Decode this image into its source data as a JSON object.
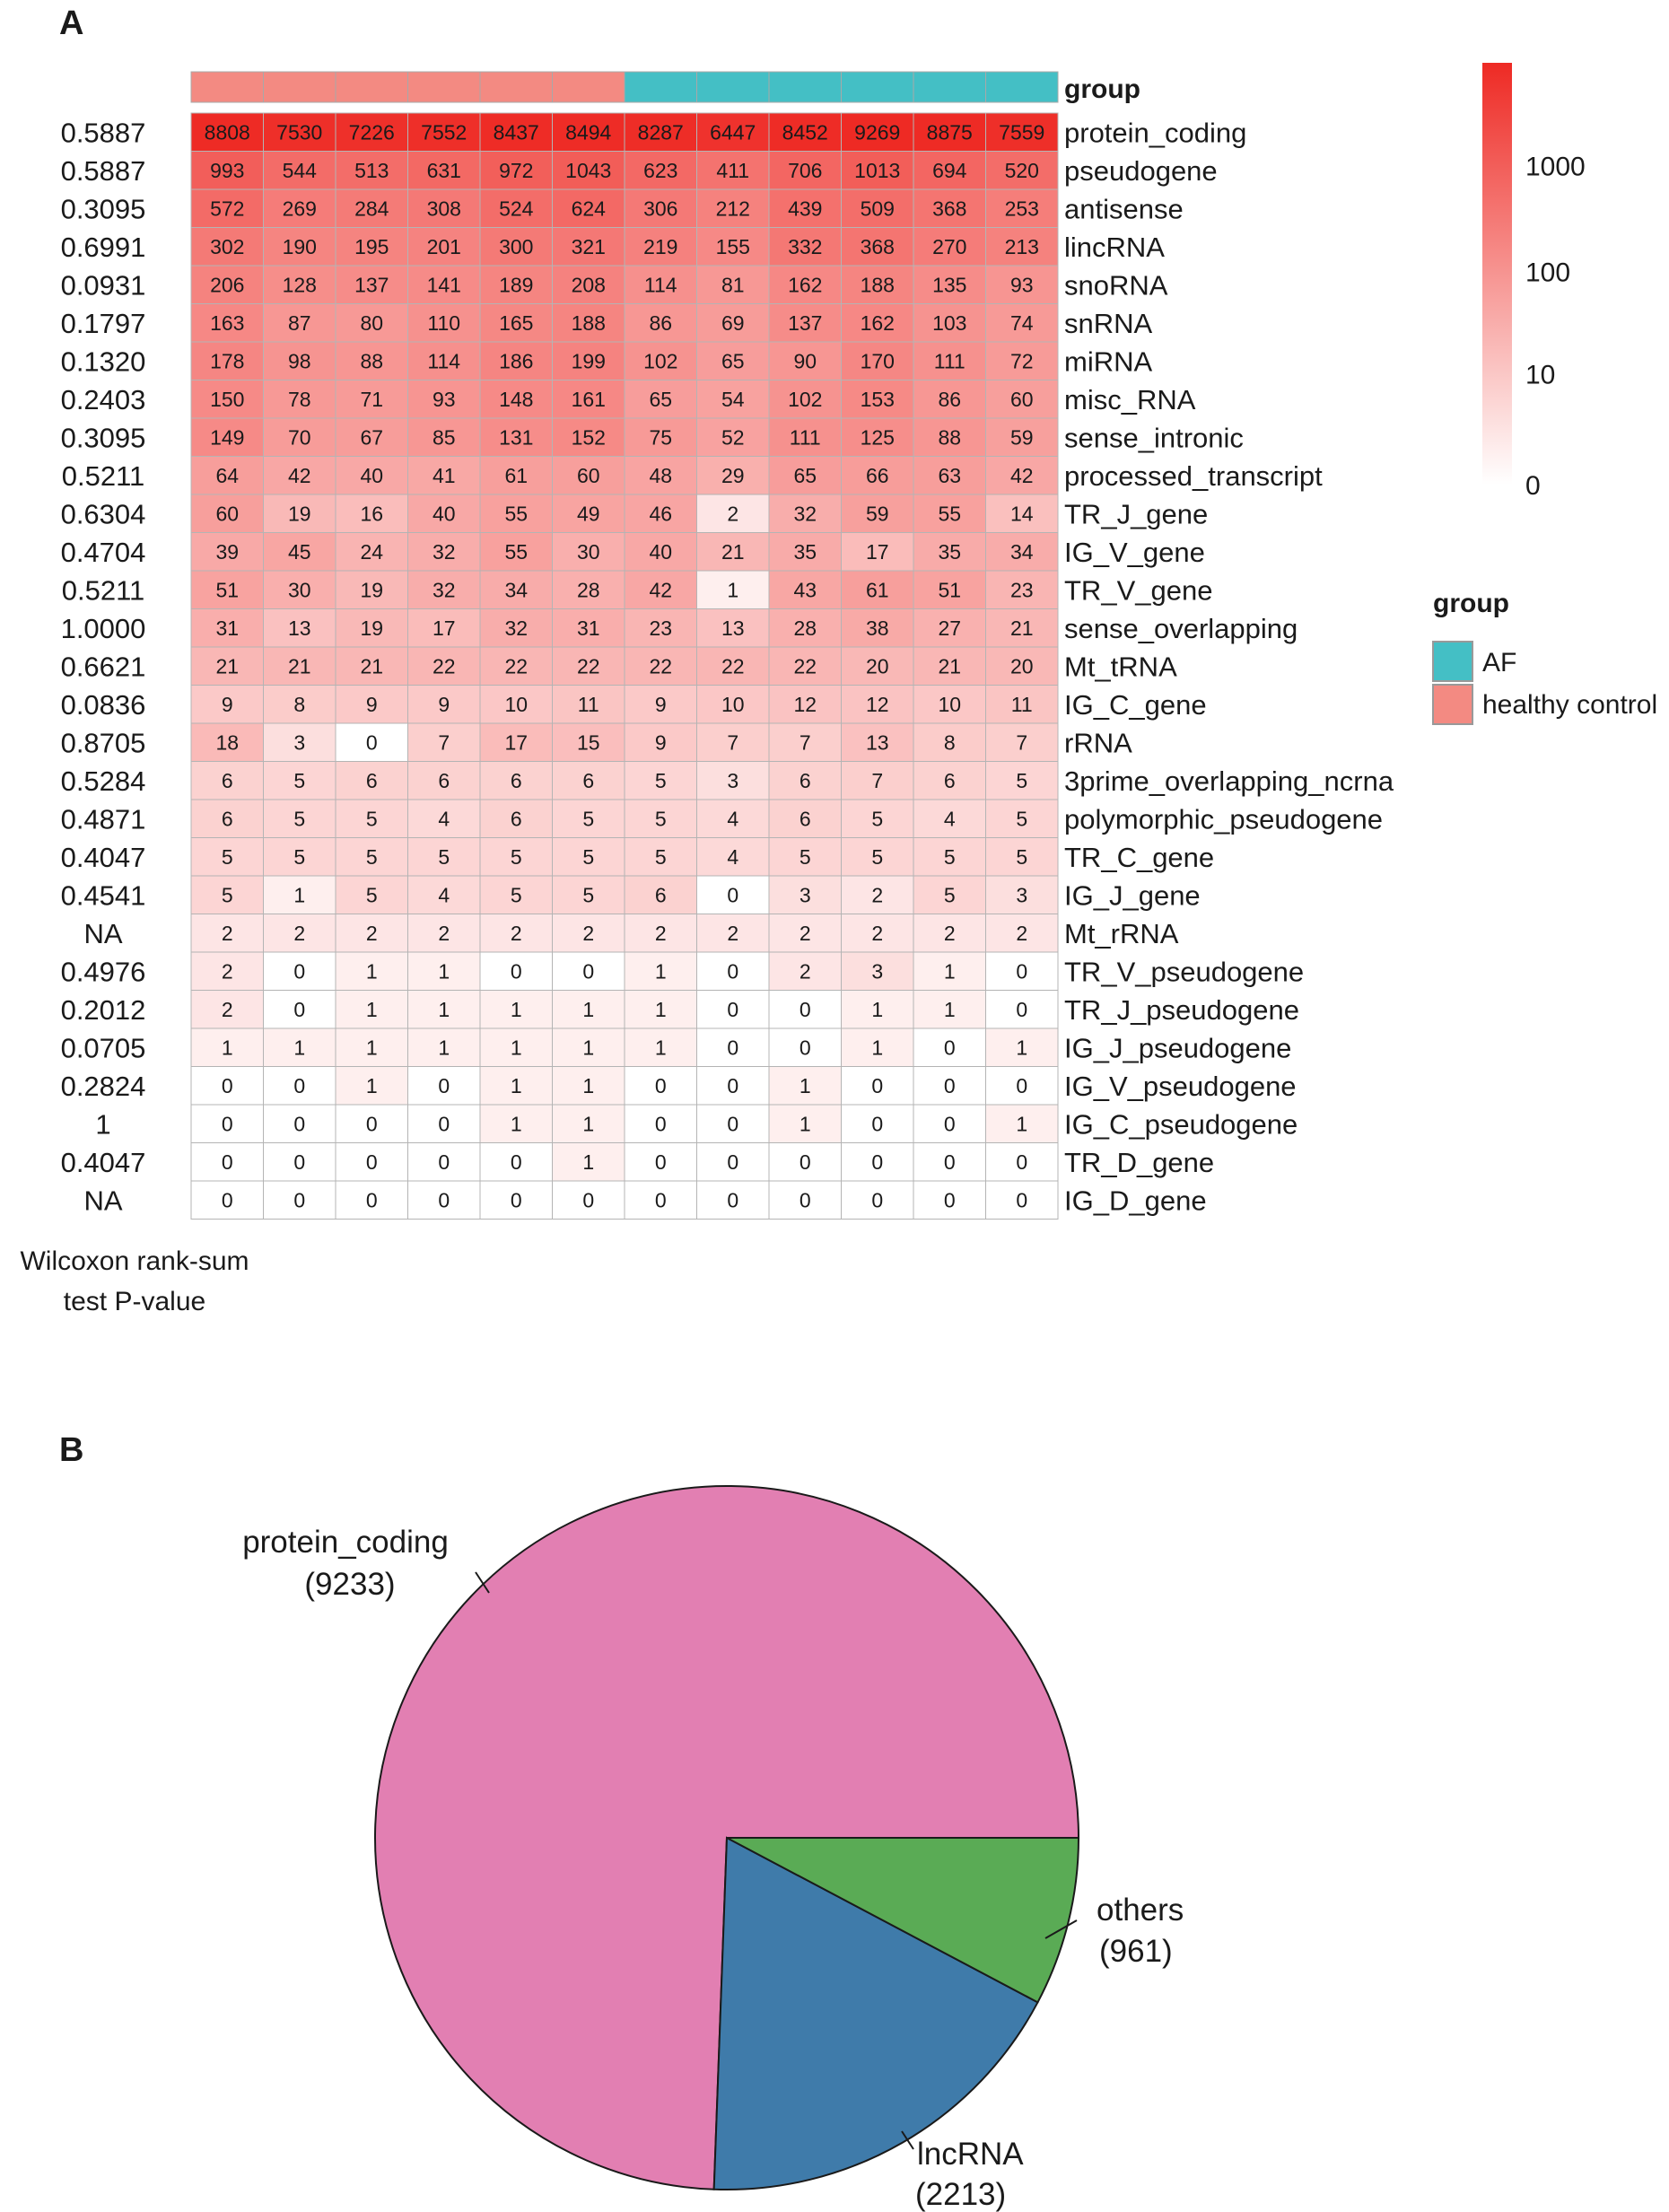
{
  "chart_data": [
    {
      "type": "heatmap",
      "panel": "A",
      "annotation_title": "group",
      "samples_group": [
        "healthy control",
        "healthy control",
        "healthy control",
        "healthy control",
        "healthy control",
        "healthy control",
        "AF",
        "AF",
        "AF",
        "AF",
        "AF",
        "AF"
      ],
      "rows": [
        {
          "label": "protein_coding",
          "pvalue": "0.5887",
          "values": [
            8808,
            7530,
            7226,
            7552,
            8437,
            8494,
            8287,
            6447,
            8452,
            9269,
            8875,
            7559
          ]
        },
        {
          "label": "pseudogene",
          "pvalue": "0.5887",
          "values": [
            993,
            544,
            513,
            631,
            972,
            1043,
            623,
            411,
            706,
            1013,
            694,
            520
          ]
        },
        {
          "label": "antisense",
          "pvalue": "0.3095",
          "values": [
            572,
            269,
            284,
            308,
            524,
            624,
            306,
            212,
            439,
            509,
            368,
            253
          ]
        },
        {
          "label": "lincRNA",
          "pvalue": "0.6991",
          "values": [
            302,
            190,
            195,
            201,
            300,
            321,
            219,
            155,
            332,
            368,
            270,
            213
          ]
        },
        {
          "label": "snoRNA",
          "pvalue": "0.0931",
          "values": [
            206,
            128,
            137,
            141,
            189,
            208,
            114,
            81,
            162,
            188,
            135,
            93
          ]
        },
        {
          "label": "snRNA",
          "pvalue": "0.1797",
          "values": [
            163,
            87,
            80,
            110,
            165,
            188,
            86,
            69,
            137,
            162,
            103,
            74
          ]
        },
        {
          "label": "miRNA",
          "pvalue": "0.1320",
          "values": [
            178,
            98,
            88,
            114,
            186,
            199,
            102,
            65,
            90,
            170,
            111,
            72
          ]
        },
        {
          "label": "misc_RNA",
          "pvalue": "0.2403",
          "values": [
            150,
            78,
            71,
            93,
            148,
            161,
            65,
            54,
            102,
            153,
            86,
            60
          ]
        },
        {
          "label": "sense_intronic",
          "pvalue": "0.3095",
          "values": [
            149,
            70,
            67,
            85,
            131,
            152,
            75,
            52,
            111,
            125,
            88,
            59
          ]
        },
        {
          "label": "processed_transcript",
          "pvalue": "0.5211",
          "values": [
            64,
            42,
            40,
            41,
            61,
            60,
            48,
            29,
            65,
            66,
            63,
            42
          ]
        },
        {
          "label": "TR_J_gene",
          "pvalue": "0.6304",
          "values": [
            60,
            19,
            16,
            40,
            55,
            49,
            46,
            2,
            32,
            59,
            55,
            14
          ]
        },
        {
          "label": "IG_V_gene",
          "pvalue": "0.4704",
          "values": [
            39,
            45,
            24,
            32,
            55,
            30,
            40,
            21,
            35,
            17,
            35,
            34
          ]
        },
        {
          "label": "TR_V_gene",
          "pvalue": "0.5211",
          "values": [
            51,
            30,
            19,
            32,
            34,
            28,
            42,
            1,
            43,
            61,
            51,
            23
          ]
        },
        {
          "label": "sense_overlapping",
          "pvalue": "1.0000",
          "values": [
            31,
            13,
            19,
            17,
            32,
            31,
            23,
            13,
            28,
            38,
            27,
            21
          ]
        },
        {
          "label": "Mt_tRNA",
          "pvalue": "0.6621",
          "values": [
            21,
            21,
            21,
            22,
            22,
            22,
            22,
            22,
            22,
            20,
            21,
            20
          ]
        },
        {
          "label": "IG_C_gene",
          "pvalue": "0.0836",
          "values": [
            9,
            8,
            9,
            9,
            10,
            11,
            9,
            10,
            12,
            12,
            10,
            11
          ]
        },
        {
          "label": "rRNA",
          "pvalue": "0.8705",
          "values": [
            18,
            3,
            0,
            7,
            17,
            15,
            9,
            7,
            7,
            13,
            8,
            7
          ]
        },
        {
          "label": "3prime_overlapping_ncrna",
          "pvalue": "0.5284",
          "values": [
            6,
            5,
            6,
            6,
            6,
            6,
            5,
            3,
            6,
            7,
            6,
            5
          ]
        },
        {
          "label": "polymorphic_pseudogene",
          "pvalue": "0.4871",
          "values": [
            6,
            5,
            5,
            4,
            6,
            5,
            5,
            4,
            6,
            5,
            4,
            5
          ]
        },
        {
          "label": "TR_C_gene",
          "pvalue": "0.4047",
          "values": [
            5,
            5,
            5,
            5,
            5,
            5,
            5,
            4,
            5,
            5,
            5,
            5
          ]
        },
        {
          "label": "IG_J_gene",
          "pvalue": "0.4541",
          "values": [
            5,
            1,
            5,
            4,
            5,
            5,
            6,
            0,
            3,
            2,
            5,
            3
          ]
        },
        {
          "label": "Mt_rRNA",
          "pvalue": "NA",
          "values": [
            2,
            2,
            2,
            2,
            2,
            2,
            2,
            2,
            2,
            2,
            2,
            2
          ]
        },
        {
          "label": "TR_V_pseudogene",
          "pvalue": "0.4976",
          "values": [
            2,
            0,
            1,
            1,
            0,
            0,
            1,
            0,
            2,
            3,
            1,
            0
          ]
        },
        {
          "label": "TR_J_pseudogene",
          "pvalue": "0.2012",
          "values": [
            2,
            0,
            1,
            1,
            1,
            1,
            1,
            0,
            0,
            1,
            1,
            0
          ]
        },
        {
          "label": "IG_J_pseudogene",
          "pvalue": "0.0705",
          "values": [
            1,
            1,
            1,
            1,
            1,
            1,
            1,
            0,
            0,
            1,
            0,
            1
          ]
        },
        {
          "label": "IG_V_pseudogene",
          "pvalue": "0.2824",
          "values": [
            0,
            0,
            1,
            0,
            1,
            1,
            0,
            0,
            1,
            0,
            0,
            0
          ]
        },
        {
          "label": "IG_C_pseudogene",
          "pvalue": "1",
          "values": [
            0,
            0,
            0,
            0,
            1,
            1,
            0,
            0,
            1,
            0,
            0,
            1
          ]
        },
        {
          "label": "TR_D_gene",
          "pvalue": "0.4047",
          "values": [
            0,
            0,
            0,
            0,
            0,
            1,
            0,
            0,
            0,
            0,
            0,
            0
          ]
        },
        {
          "label": "IG_D_gene",
          "pvalue": "NA",
          "values": [
            0,
            0,
            0,
            0,
            0,
            0,
            0,
            0,
            0,
            0,
            0,
            0
          ]
        }
      ],
      "pvalue_caption": [
        "Wilcoxon rank-sum",
        "test P-value"
      ],
      "color_scale": {
        "type": "log",
        "ticks": [
          0,
          10,
          100,
          1000
        ],
        "tick_labels": [
          "0",
          "10",
          "100",
          "1000"
        ],
        "low_color": "#ffffff",
        "high_color": "#ee2a24"
      },
      "group_legend": {
        "title": "group",
        "items": [
          {
            "label": "AF",
            "color": "#44bfc5"
          },
          {
            "label": "healthy control",
            "color": "#f38a82"
          }
        ]
      }
    },
    {
      "type": "pie",
      "panel": "B",
      "slices": [
        {
          "label": "protein_coding",
          "value": 9233,
          "display": "(9233)",
          "color": "#e27fb2"
        },
        {
          "label": "lncRNA",
          "value": 2213,
          "display": "(2213)",
          "color": "#3f7baa"
        },
        {
          "label": "others",
          "value": 961,
          "display": "(961)",
          "color": "#5aab55"
        }
      ]
    }
  ]
}
